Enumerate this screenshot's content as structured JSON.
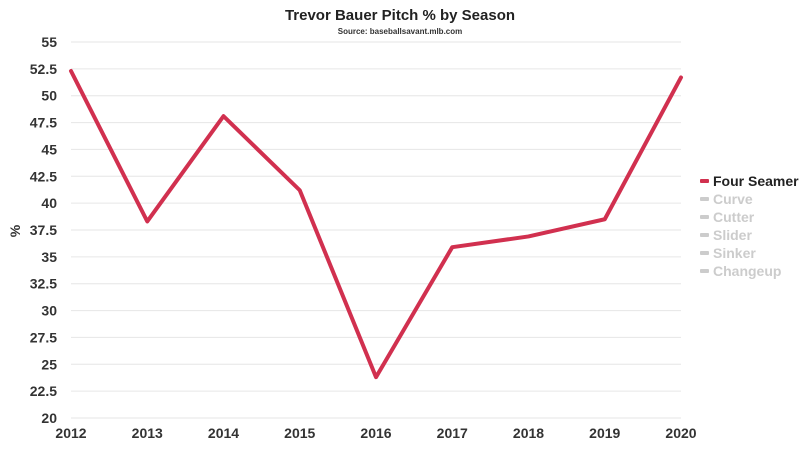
{
  "chart_data": {
    "type": "line",
    "title": "Trevor Bauer Pitch % by Season",
    "subtitle": "Source: baseballsavant.mlb.com",
    "ylabel": "%",
    "xlabel": "",
    "categories": [
      "2012",
      "2013",
      "2014",
      "2015",
      "2016",
      "2017",
      "2018",
      "2019",
      "2020"
    ],
    "ylim": [
      20,
      55
    ],
    "yticks": [
      "20",
      "22.5",
      "25",
      "27.5",
      "30",
      "32.5",
      "35",
      "37.5",
      "40",
      "42.5",
      "45",
      "47.5",
      "50",
      "52.5",
      "55"
    ],
    "grid": true,
    "legend_position": "right",
    "series": [
      {
        "name": "Four Seamer",
        "values": [
          52.3,
          38.3,
          48.1,
          41.2,
          23.8,
          35.9,
          36.9,
          38.5,
          51.7
        ],
        "color": "#d1304f",
        "visible": true
      }
    ],
    "legend": [
      {
        "name": "Four Seamer",
        "active": true
      },
      {
        "name": "Curve",
        "active": false
      },
      {
        "name": "Cutter",
        "active": false
      },
      {
        "name": "Slider",
        "active": false
      },
      {
        "name": "Sinker",
        "active": false
      },
      {
        "name": "Changeup",
        "active": false
      }
    ],
    "colors": {
      "active_series": "#d1304f",
      "inactive_legend": "#cccccc",
      "grid": "#e6e6e6",
      "text": "#333333"
    }
  }
}
